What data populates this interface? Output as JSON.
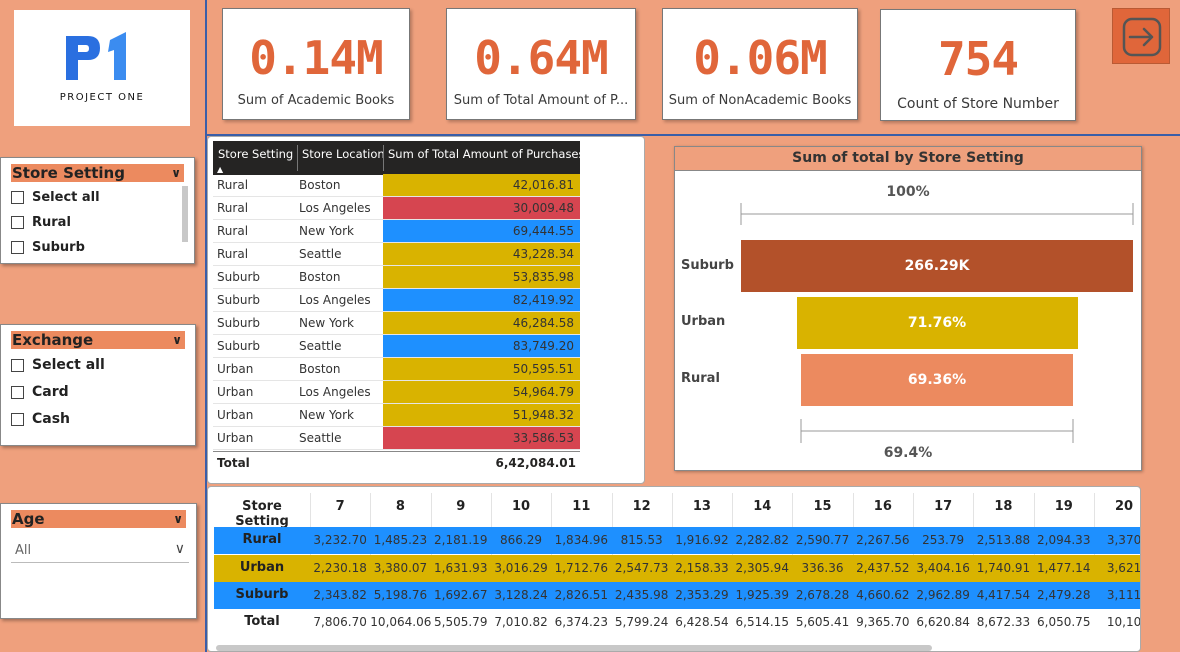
{
  "logo": {
    "mark": "P1",
    "text": "PROJECT ONE"
  },
  "kpis": [
    {
      "value": "0.14M",
      "label": "Sum of Academic Books"
    },
    {
      "value": "0.64M",
      "label": "Sum of Total Amount of P..."
    },
    {
      "value": "0.06M",
      "label": "Sum of NonAcademic Books"
    },
    {
      "value": "754",
      "label": "Count of Store Number"
    }
  ],
  "exit": {
    "icon": "exit-arrow-icon"
  },
  "slicers": {
    "store_setting": {
      "title": "Store Setting",
      "options": [
        "Select all",
        "Rural",
        "Suburb"
      ]
    },
    "exchange": {
      "title": "Exchange",
      "options": [
        "Select all",
        "Card",
        "Cash"
      ]
    },
    "age": {
      "title": "Age",
      "selected": "All"
    }
  },
  "table": {
    "headers": [
      "Store Setting",
      "Store Location",
      "Sum of Total Amount of Purchases"
    ],
    "rows": [
      {
        "setting": "Rural",
        "location": "Boston",
        "amount": "42,016.81",
        "color": "#d9b300"
      },
      {
        "setting": "Rural",
        "location": "Los Angeles",
        "amount": "30,009.48",
        "color": "#d64550"
      },
      {
        "setting": "Rural",
        "location": "New York",
        "amount": "69,444.55",
        "color": "#1e90ff"
      },
      {
        "setting": "Rural",
        "location": "Seattle",
        "amount": "43,228.34",
        "color": "#d9b300"
      },
      {
        "setting": "Suburb",
        "location": "Boston",
        "amount": "53,835.98",
        "color": "#d9b300"
      },
      {
        "setting": "Suburb",
        "location": "Los Angeles",
        "amount": "82,419.92",
        "color": "#1e90ff"
      },
      {
        "setting": "Suburb",
        "location": "New York",
        "amount": "46,284.58",
        "color": "#d9b300"
      },
      {
        "setting": "Suburb",
        "location": "Seattle",
        "amount": "83,749.20",
        "color": "#1e90ff"
      },
      {
        "setting": "Urban",
        "location": "Boston",
        "amount": "50,595.51",
        "color": "#d9b300"
      },
      {
        "setting": "Urban",
        "location": "Los Angeles",
        "amount": "54,964.79",
        "color": "#d9b300"
      },
      {
        "setting": "Urban",
        "location": "New York",
        "amount": "51,948.32",
        "color": "#d9b300"
      },
      {
        "setting": "Urban",
        "location": "Seattle",
        "amount": "33,586.53",
        "color": "#d64550"
      }
    ],
    "total_label": "Total",
    "total_value": "6,42,084.01"
  },
  "chart_data": {
    "type": "funnel",
    "title": "Sum of total by Store Setting",
    "top_label": "100%",
    "bottom_label": "69.4%",
    "categories": [
      "Suburb",
      "Urban",
      "Rural"
    ],
    "values": [
      266290,
      191090,
      184710
    ],
    "data_labels": [
      "266.29K",
      "71.76%",
      "69.36%"
    ],
    "colors": [
      "#b3512a",
      "#d9b300",
      "#ec8a5f"
    ]
  },
  "matrix": {
    "corner": "Store Setting",
    "columns": [
      "7",
      "8",
      "9",
      "10",
      "11",
      "12",
      "13",
      "14",
      "15",
      "16",
      "17",
      "18",
      "19",
      "20"
    ],
    "rows": [
      {
        "label": "Rural",
        "color": "#1e90ff",
        "values": [
          "3,232.70",
          "1,485.23",
          "2,181.19",
          "866.29",
          "1,834.96",
          "815.53",
          "1,916.92",
          "2,282.82",
          "2,590.77",
          "2,267.56",
          "253.79",
          "2,513.88",
          "2,094.33",
          "3,370"
        ]
      },
      {
        "label": "Urban",
        "color": "#d9b300",
        "values": [
          "2,230.18",
          "3,380.07",
          "1,631.93",
          "3,016.29",
          "1,712.76",
          "2,547.73",
          "2,158.33",
          "2,305.94",
          "336.36",
          "2,437.52",
          "3,404.16",
          "1,740.91",
          "1,477.14",
          "3,621"
        ]
      },
      {
        "label": "Suburb",
        "color": "#1e90ff",
        "values": [
          "2,343.82",
          "5,198.76",
          "1,692.67",
          "3,128.24",
          "2,826.51",
          "2,435.98",
          "2,353.29",
          "1,925.39",
          "2,678.28",
          "4,660.62",
          "2,962.89",
          "4,417.54",
          "2,479.28",
          "3,111"
        ]
      },
      {
        "label": "Total",
        "color": "#ffffff",
        "values": [
          "7,806.70",
          "10,064.06",
          "5,505.79",
          "7,010.82",
          "6,374.23",
          "5,799.24",
          "6,428.54",
          "6,514.15",
          "5,605.41",
          "9,365.70",
          "6,620.84",
          "8,672.33",
          "6,050.75",
          "10,10"
        ]
      }
    ]
  }
}
